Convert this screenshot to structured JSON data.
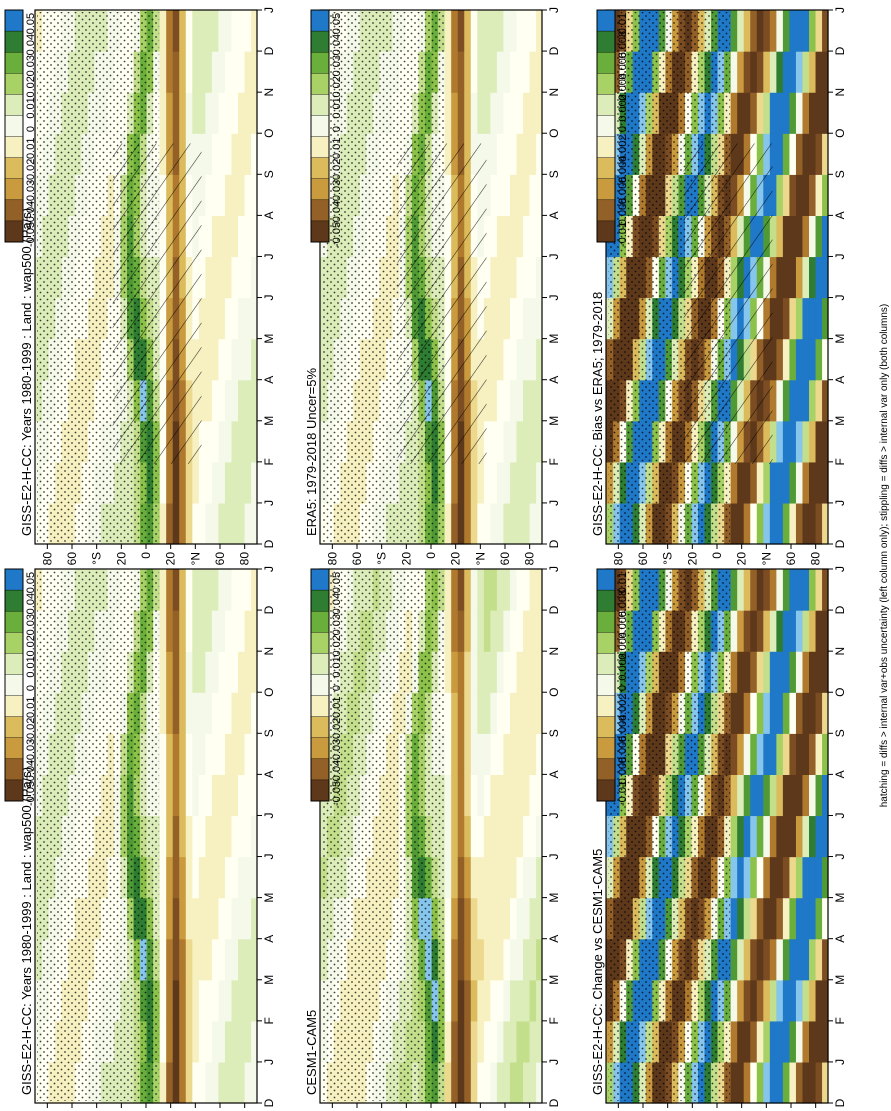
{
  "figure": {
    "footer_note": "hatching = diffs > internal var+obs uncertainty (left column only); stippling = diffs > internal var only (both columns)"
  },
  "palette": {
    "positive": [
      "#1f78c8",
      "#86c5ec",
      "#2e7d32",
      "#4f9a35",
      "#6aae3c",
      "#8cc24a",
      "#a8d166",
      "#c3df8c",
      "#dcedb9",
      "#f4f9ea"
    ],
    "negative": [
      "#fffff2",
      "#f7f0c0",
      "#ecd98e",
      "#dcbb5c",
      "#c99a3e",
      "#b07a2e",
      "#936027",
      "#7c4d22",
      "#5e381a"
    ]
  },
  "chart_data": [
    {
      "type": "heatmap",
      "title": "GISS-E2-H-CC: Years 1980-1999 : Land : wap500 (Pa/s)",
      "x_ticks": [
        "D",
        "J",
        "F",
        "M",
        "A",
        "M",
        "J",
        "J",
        "A",
        "S",
        "O",
        "N",
        "D",
        "J"
      ],
      "y_ticks": [
        "80",
        "60",
        "°N",
        "20",
        "0",
        "20",
        "°S",
        "60",
        "80"
      ],
      "colorbar": {
        "ticks": [
          "0.05",
          "0.04",
          "0.03",
          "0.02",
          "0.01",
          "0",
          "-0.01",
          "-0.02",
          "-0.03",
          "-0.04",
          "-0.05"
        ],
        "range": [
          -0.05,
          0.05
        ]
      },
      "hatching": true,
      "stippling": true
    },
    {
      "type": "heatmap",
      "title": "GISS-E2-H-CC: Years 1980-1999 : Land : wap500 (Pa/s)",
      "x_ticks": [
        "D",
        "J",
        "F",
        "M",
        "A",
        "M",
        "J",
        "J",
        "A",
        "S",
        "O",
        "N",
        "D",
        "J"
      ],
      "y_ticks": [
        "80",
        "60",
        "°N",
        "20",
        "0",
        "20",
        "°S",
        "60",
        "80"
      ],
      "colorbar": {
        "ticks": [
          "0.05",
          "0.04",
          "0.03",
          "0.02",
          "0.01",
          "0",
          "-0.01",
          "-0.02",
          "-0.03",
          "-0.04",
          "-0.05"
        ],
        "range": [
          -0.05,
          0.05
        ]
      },
      "hatching": false,
      "stippling": true
    },
    {
      "type": "heatmap",
      "title": "ERA5: 1979-2018 Uncer=5%",
      "x_ticks": [
        "D",
        "J",
        "F",
        "M",
        "A",
        "M",
        "J",
        "J",
        "A",
        "S",
        "O",
        "N",
        "D",
        "J"
      ],
      "y_ticks": [
        "80",
        "60",
        "°N",
        "20",
        "0",
        "20",
        "°S",
        "60",
        "80"
      ],
      "colorbar": {
        "ticks": [
          "0.05",
          "0.04",
          "0.03",
          "0.02",
          "0.01",
          "0",
          "-0.01",
          "-0.02",
          "-0.03",
          "-0.04",
          "-0.05"
        ],
        "range": [
          -0.05,
          0.05
        ]
      },
      "hatching": true,
      "stippling": true
    },
    {
      "type": "heatmap",
      "title": "CESM1-CAM5",
      "x_ticks": [
        "D",
        "J",
        "F",
        "M",
        "A",
        "M",
        "J",
        "J",
        "A",
        "S",
        "O",
        "N",
        "D",
        "J"
      ],
      "y_ticks": [
        "80",
        "60",
        "°N",
        "20",
        "0",
        "20",
        "°S",
        "60",
        "80"
      ],
      "colorbar": {
        "ticks": [
          "0.05",
          "0.04",
          "0.03",
          "0.02",
          "0.01",
          "0",
          "-0.01",
          "-0.02",
          "-0.03",
          "-0.04",
          "-0.05"
        ],
        "range": [
          -0.05,
          0.05
        ]
      },
      "hatching": false,
      "stippling": true
    },
    {
      "type": "heatmap",
      "title": "GISS-E2-H-CC: Bias vs ERA5; 1979-2018",
      "x_ticks": [
        "D",
        "J",
        "F",
        "M",
        "A",
        "M",
        "J",
        "J",
        "A",
        "S",
        "O",
        "N",
        "D",
        "J"
      ],
      "y_ticks": [
        "80",
        "60",
        "°N",
        "20",
        "0",
        "20",
        "°S",
        "60",
        "80"
      ],
      "colorbar": {
        "ticks": [
          "0.01",
          "0.008",
          "0.006",
          "0.004",
          "0.002",
          "0",
          "-0.002",
          "-0.004",
          "-0.006",
          "-0.008",
          "-0.01"
        ],
        "range": [
          -0.01,
          0.01
        ]
      },
      "hatching": true,
      "stippling": true
    },
    {
      "type": "heatmap",
      "title": "GISS-E2-H-CC: Change vs CESM1-CAM5",
      "x_ticks": [
        "D",
        "J",
        "F",
        "M",
        "A",
        "M",
        "J",
        "J",
        "A",
        "S",
        "O",
        "N",
        "D",
        "J"
      ],
      "y_ticks": [
        "80",
        "60",
        "°N",
        "20",
        "0",
        "20",
        "°S",
        "60",
        "80"
      ],
      "colorbar": {
        "ticks": [
          "0.01",
          "0.008",
          "0.006",
          "0.004",
          "0.002",
          "0",
          "-0.002",
          "-0.004",
          "-0.006",
          "-0.008",
          "-0.01"
        ],
        "range": [
          -0.01,
          0.01
        ]
      },
      "hatching": false,
      "stippling": true
    }
  ]
}
